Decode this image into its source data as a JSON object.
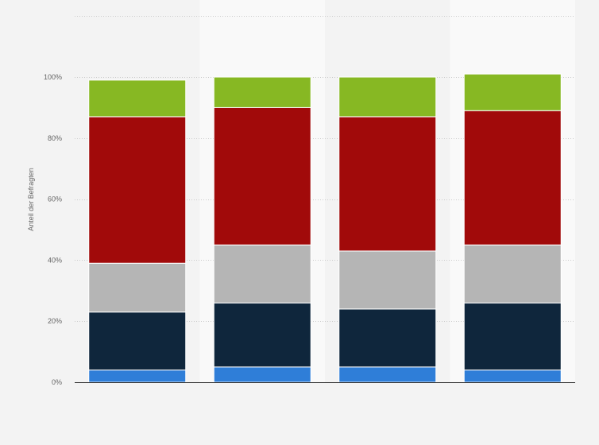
{
  "chart_data": {
    "type": "bar",
    "stacked": true,
    "title": "",
    "xlabel": "",
    "ylabel": "Anteil der Befragten",
    "categories": [
      "",
      "",
      "",
      ""
    ],
    "ylim": [
      0,
      120
    ],
    "yticks": [
      {
        "value": 0,
        "label": "0%"
      },
      {
        "value": 20,
        "label": "20%"
      },
      {
        "value": 40,
        "label": "40%"
      },
      {
        "value": 60,
        "label": "60%"
      },
      {
        "value": 80,
        "label": "80%"
      },
      {
        "value": 100,
        "label": "100%"
      }
    ],
    "grid": true,
    "legend": "none",
    "series": [
      {
        "color": "#2f7ed8",
        "values": [
          4,
          5,
          5,
          4
        ]
      },
      {
        "color": "#0f263c",
        "values": [
          19,
          21,
          19,
          22
        ]
      },
      {
        "color": "#b5b5b5",
        "values": [
          16,
          19,
          19,
          19
        ]
      },
      {
        "color": "#a10a0a",
        "values": [
          48,
          45,
          44,
          44
        ]
      },
      {
        "color": "#87b823",
        "values": [
          12,
          10,
          13,
          12
        ]
      }
    ]
  }
}
